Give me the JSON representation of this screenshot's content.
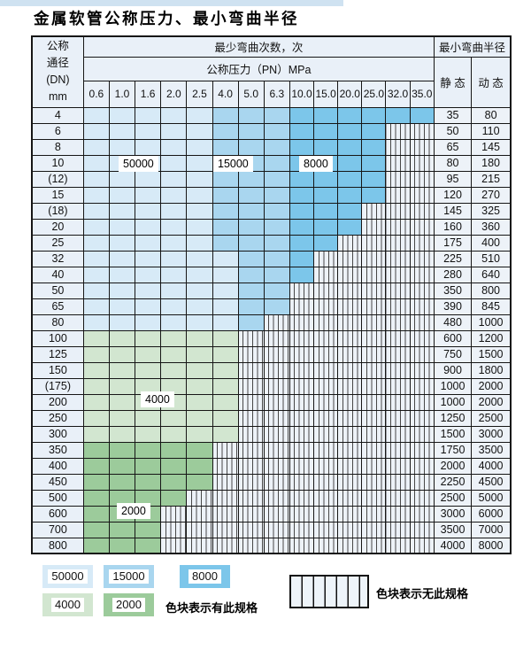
{
  "title": "金属软管公称压力、最小弯曲半径",
  "table": {
    "header": {
      "dn_lines": [
        "公称",
        "通径",
        "(DN)",
        "mm"
      ],
      "min_bend_cycles": "最少弯曲次数，次",
      "nominal_pressure": "公称压力（PN）MPa",
      "min_bend_radius": "最小弯曲半径",
      "static": "静 态",
      "dynamic": "动 态",
      "pressures": [
        "0.6",
        "1.0",
        "1.6",
        "2.0",
        "2.5",
        "4.0",
        "5.0",
        "6.3",
        "10.0",
        "15.0",
        "20.0",
        "25.0",
        "32.0",
        "35.0"
      ]
    },
    "cell_code_legend": {
      "b1": "50000",
      "b2": "15000",
      "b3": "8000",
      "g1": "4000",
      "g2": "2000",
      "x": "no-spec-hatched"
    },
    "rows": [
      {
        "dn": "4",
        "static": "35",
        "dynamic": "80",
        "cells": [
          "b1",
          "b1",
          "b1",
          "b1",
          "b1",
          "b2",
          "b2",
          "b2",
          "b3",
          "b3",
          "b3",
          "b3",
          "b3",
          "b3"
        ]
      },
      {
        "dn": "6",
        "static": "50",
        "dynamic": "110",
        "cells": [
          "b1",
          "b1",
          "b1",
          "b1",
          "b1",
          "b2",
          "b2",
          "b2",
          "b3",
          "b3",
          "b3",
          "b3",
          "x",
          "x"
        ]
      },
      {
        "dn": "8",
        "static": "65",
        "dynamic": "145",
        "cells": [
          "b1",
          "b1",
          "b1",
          "b1",
          "b1",
          "b2",
          "b2",
          "b2",
          "b3",
          "b3",
          "b3",
          "b3",
          "x",
          "x"
        ]
      },
      {
        "dn": "10",
        "static": "80",
        "dynamic": "180",
        "cells": [
          "b1",
          "b1",
          "b1",
          "b1",
          "b1",
          "b2",
          "b2",
          "b2",
          "b3",
          "b3",
          "b3",
          "b3",
          "x",
          "x"
        ]
      },
      {
        "dn": "(12)",
        "static": "95",
        "dynamic": "215",
        "cells": [
          "b1",
          "b1",
          "b1",
          "b1",
          "b1",
          "b2",
          "b2",
          "b2",
          "b3",
          "b3",
          "b3",
          "b3",
          "x",
          "x"
        ]
      },
      {
        "dn": "15",
        "static": "120",
        "dynamic": "270",
        "cells": [
          "b1",
          "b1",
          "b1",
          "b1",
          "b1",
          "b2",
          "b2",
          "b2",
          "b3",
          "b3",
          "b3",
          "b3",
          "x",
          "x"
        ]
      },
      {
        "dn": "(18)",
        "static": "145",
        "dynamic": "325",
        "cells": [
          "b1",
          "b1",
          "b1",
          "b1",
          "b1",
          "b2",
          "b2",
          "b2",
          "b3",
          "b3",
          "b3",
          "x",
          "x",
          "x"
        ]
      },
      {
        "dn": "20",
        "static": "160",
        "dynamic": "360",
        "cells": [
          "b1",
          "b1",
          "b1",
          "b1",
          "b1",
          "b2",
          "b2",
          "b2",
          "b3",
          "b3",
          "b3",
          "x",
          "x",
          "x"
        ]
      },
      {
        "dn": "25",
        "static": "175",
        "dynamic": "400",
        "cells": [
          "b1",
          "b1",
          "b1",
          "b1",
          "b1",
          "b2",
          "b2",
          "b2",
          "b3",
          "b3",
          "x",
          "x",
          "x",
          "x"
        ]
      },
      {
        "dn": "32",
        "static": "225",
        "dynamic": "510",
        "cells": [
          "b1",
          "b1",
          "b1",
          "b1",
          "b1",
          "b1",
          "b2",
          "b2",
          "b3",
          "x",
          "x",
          "x",
          "x",
          "x"
        ]
      },
      {
        "dn": "40",
        "static": "280",
        "dynamic": "640",
        "cells": [
          "b1",
          "b1",
          "b1",
          "b1",
          "b1",
          "b1",
          "b2",
          "b2",
          "b3",
          "x",
          "x",
          "x",
          "x",
          "x"
        ]
      },
      {
        "dn": "50",
        "static": "350",
        "dynamic": "800",
        "cells": [
          "b1",
          "b1",
          "b1",
          "b1",
          "b1",
          "b1",
          "b2",
          "b2",
          "x",
          "x",
          "x",
          "x",
          "x",
          "x"
        ]
      },
      {
        "dn": "65",
        "static": "390",
        "dynamic": "845",
        "cells": [
          "b1",
          "b1",
          "b1",
          "b1",
          "b1",
          "b1",
          "b2",
          "b2",
          "x",
          "x",
          "x",
          "x",
          "x",
          "x"
        ]
      },
      {
        "dn": "80",
        "static": "480",
        "dynamic": "1000",
        "cells": [
          "b1",
          "b1",
          "b1",
          "b1",
          "b1",
          "b1",
          "b2",
          "x",
          "x",
          "x",
          "x",
          "x",
          "x",
          "x"
        ]
      },
      {
        "dn": "100",
        "static": "600",
        "dynamic": "1200",
        "cells": [
          "g1",
          "g1",
          "g1",
          "g1",
          "g1",
          "g1",
          "x",
          "x",
          "x",
          "x",
          "x",
          "x",
          "x",
          "x"
        ]
      },
      {
        "dn": "125",
        "static": "750",
        "dynamic": "1500",
        "cells": [
          "g1",
          "g1",
          "g1",
          "g1",
          "g1",
          "g1",
          "x",
          "x",
          "x",
          "x",
          "x",
          "x",
          "x",
          "x"
        ]
      },
      {
        "dn": "150",
        "static": "900",
        "dynamic": "1800",
        "cells": [
          "g1",
          "g1",
          "g1",
          "g1",
          "g1",
          "g1",
          "x",
          "x",
          "x",
          "x",
          "x",
          "x",
          "x",
          "x"
        ]
      },
      {
        "dn": "(175)",
        "static": "1000",
        "dynamic": "2000",
        "cells": [
          "g1",
          "g1",
          "g1",
          "g1",
          "g1",
          "g1",
          "x",
          "x",
          "x",
          "x",
          "x",
          "x",
          "x",
          "x"
        ]
      },
      {
        "dn": "200",
        "static": "1000",
        "dynamic": "2000",
        "cells": [
          "g1",
          "g1",
          "g1",
          "g1",
          "g1",
          "g1",
          "x",
          "x",
          "x",
          "x",
          "x",
          "x",
          "x",
          "x"
        ]
      },
      {
        "dn": "250",
        "static": "1250",
        "dynamic": "2500",
        "cells": [
          "g1",
          "g1",
          "g1",
          "g1",
          "g1",
          "g1",
          "x",
          "x",
          "x",
          "x",
          "x",
          "x",
          "x",
          "x"
        ]
      },
      {
        "dn": "300",
        "static": "1500",
        "dynamic": "3000",
        "cells": [
          "g1",
          "g1",
          "g1",
          "g1",
          "g1",
          "g1",
          "x",
          "x",
          "x",
          "x",
          "x",
          "x",
          "x",
          "x"
        ]
      },
      {
        "dn": "350",
        "static": "1750",
        "dynamic": "3500",
        "cells": [
          "g2",
          "g2",
          "g2",
          "g2",
          "g2",
          "x",
          "x",
          "x",
          "x",
          "x",
          "x",
          "x",
          "x",
          "x"
        ]
      },
      {
        "dn": "400",
        "static": "2000",
        "dynamic": "4000",
        "cells": [
          "g2",
          "g2",
          "g2",
          "g2",
          "g2",
          "x",
          "x",
          "x",
          "x",
          "x",
          "x",
          "x",
          "x",
          "x"
        ]
      },
      {
        "dn": "450",
        "static": "2250",
        "dynamic": "4500",
        "cells": [
          "g2",
          "g2",
          "g2",
          "g2",
          "g2",
          "x",
          "x",
          "x",
          "x",
          "x",
          "x",
          "x",
          "x",
          "x"
        ]
      },
      {
        "dn": "500",
        "static": "2500",
        "dynamic": "5000",
        "cells": [
          "g2",
          "g2",
          "g2",
          "g2",
          "x",
          "x",
          "x",
          "x",
          "x",
          "x",
          "x",
          "x",
          "x",
          "x"
        ]
      },
      {
        "dn": "600",
        "static": "3000",
        "dynamic": "6000",
        "cells": [
          "g2",
          "g2",
          "g2",
          "x",
          "x",
          "x",
          "x",
          "x",
          "x",
          "x",
          "x",
          "x",
          "x",
          "x"
        ]
      },
      {
        "dn": "700",
        "static": "3500",
        "dynamic": "7000",
        "cells": [
          "g2",
          "g2",
          "g2",
          "x",
          "x",
          "x",
          "x",
          "x",
          "x",
          "x",
          "x",
          "x",
          "x",
          "x"
        ]
      },
      {
        "dn": "800",
        "static": "4000",
        "dynamic": "8000",
        "cells": [
          "g2",
          "g2",
          "g2",
          "x",
          "x",
          "x",
          "x",
          "x",
          "x",
          "x",
          "x",
          "x",
          "x",
          "x"
        ]
      }
    ],
    "overlay_labels": {
      "l50000": "50000",
      "l15000": "15000",
      "l8000": "8000",
      "l4000": "4000",
      "l2000": "2000"
    }
  },
  "legend": {
    "swatches": [
      {
        "value": "50000",
        "code": "b1"
      },
      {
        "value": "15000",
        "code": "b2"
      },
      {
        "value": "8000",
        "code": "b3"
      },
      {
        "value": "4000",
        "code": "g1"
      },
      {
        "value": "2000",
        "code": "g2"
      }
    ],
    "has_spec_text": "色块表示有此规格",
    "no_spec_text": "色块表示无此规格"
  },
  "colors": {
    "c50000": "#d7eaf7",
    "c15000": "#a9d6ef",
    "c8000": "#7cc6ea",
    "c4000": "#d2e6d0",
    "c2000": "#9ccb9b",
    "hatch-bg": "#edf2f8",
    "header-bg": "#e9f0f8",
    "value-bg": "#edf2f8",
    "grid-line": "#161616"
  }
}
